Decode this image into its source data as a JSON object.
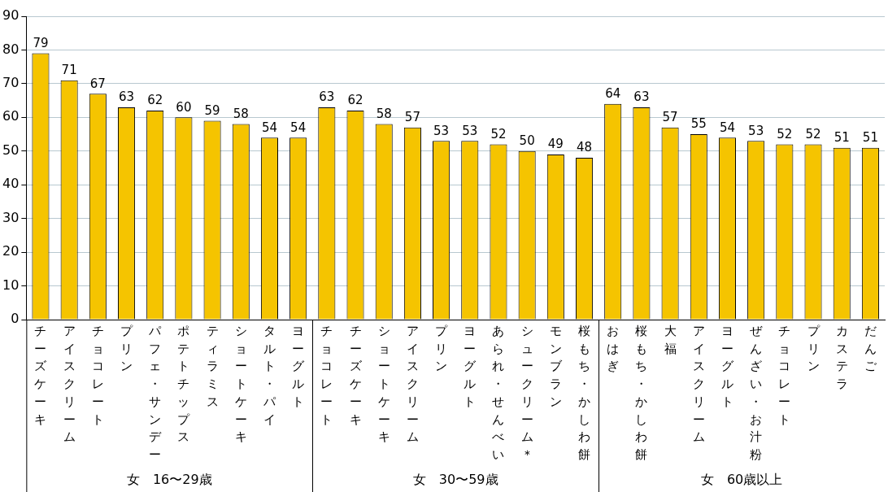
{
  "chart_data": {
    "type": "bar",
    "categories": [
      "チーズケーキ",
      "アイスクリーム",
      "チョコレート",
      "プリン",
      "パフェ・サンデー",
      "ポテトチップス",
      "ティラミス",
      "ショートケーキ",
      "タルト・パイ",
      "ヨーグルト",
      "チョコレート",
      "チーズケーキ",
      "ショートケーキ",
      "アイスクリーム",
      "プリン",
      "ヨーグルト",
      "あられ・せんべい",
      "シュークリーム＊",
      "モンブラン",
      "桜もち・かしわ餅",
      "おはぎ",
      "桜もち・かしわ餅",
      "大福",
      "アイスクリーム",
      "ヨーグルト",
      "ぜんざい・お汁粉",
      "チョコレート",
      "プリン",
      "カステラ",
      "だんご"
    ],
    "values": [
      79,
      71,
      67,
      63,
      62,
      60,
      59,
      58,
      54,
      54,
      63,
      62,
      58,
      57,
      53,
      53,
      52,
      50,
      49,
      48,
      64,
      63,
      57,
      55,
      54,
      53,
      52,
      52,
      51,
      51
    ],
    "color": "#f5c400",
    "ylim": [
      0,
      90
    ],
    "yticks": [
      0,
      10,
      20,
      30,
      40,
      50,
      60,
      70,
      80,
      90
    ],
    "grid": "y",
    "data_labels": true,
    "legend": false,
    "annotations": [
      "女　16〜29歳",
      "女　30〜59歳",
      "女　60歳以上"
    ]
  }
}
